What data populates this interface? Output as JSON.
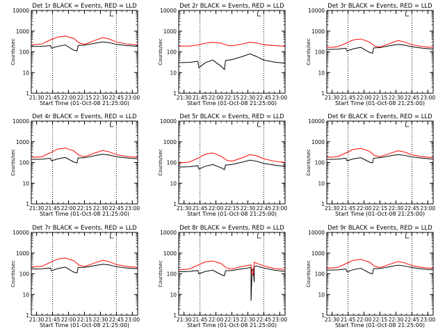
{
  "page": {
    "background": "#ffffff",
    "ink_color": "#000000",
    "lld_color": "#ff0000"
  },
  "chart_data": [
    {
      "type": "line",
      "title": "Det 1r BLACK = Events, RED = LLD",
      "xlabel": "Start Time (01-Oct-08 21:25:00)",
      "ylabel": "Counts/sec",
      "yscale": "log",
      "ylim": [
        1,
        10000
      ],
      "xlim": [
        "21:25",
        "23:05"
      ],
      "yticks": [
        "1",
        "10",
        "100",
        "1000",
        "10000"
      ],
      "xticks": [
        "21:30",
        "21:45",
        "22:00",
        "22:15",
        "22:30",
        "22:45",
        "23:00"
      ],
      "vlines": [
        "21:45",
        "22:45"
      ],
      "series": [
        {
          "name": "Events",
          "color": "#000000",
          "x": [
            "21:25",
            "21:35",
            "21:43",
            "21:44",
            "21:50",
            "21:57",
            "22:05",
            "22:08",
            "22:09",
            "22:15",
            "22:25",
            "22:32",
            "22:38",
            "22:45",
            "22:55",
            "23:05"
          ],
          "y": [
            180,
            185,
            200,
            150,
            185,
            215,
            120,
            110,
            205,
            210,
            260,
            300,
            280,
            230,
            200,
            185
          ]
        },
        {
          "name": "LLD",
          "color": "#ff0000",
          "x": [
            "21:25",
            "21:35",
            "21:43",
            "21:50",
            "21:57",
            "22:05",
            "22:10",
            "22:15",
            "22:25",
            "22:32",
            "22:38",
            "22:45",
            "22:55",
            "23:05"
          ],
          "y": [
            220,
            240,
            380,
            520,
            580,
            440,
            270,
            230,
            360,
            490,
            420,
            300,
            240,
            215
          ]
        }
      ]
    },
    {
      "type": "line",
      "title": "Det 2r BLACK = Events, RED = LLD",
      "xlabel": "Start Time (01-Oct-08 21:25:00)",
      "ylabel": "Counts/sec",
      "yscale": "log",
      "ylim": [
        1,
        10000
      ],
      "xlim": [
        "21:25",
        "23:05"
      ],
      "yticks": [
        "1",
        "10",
        "100",
        "1000",
        "10000"
      ],
      "xticks": [
        "21:30",
        "21:45",
        "22:00",
        "22:15",
        "22:30",
        "22:45",
        "23:00"
      ],
      "vlines": [
        "21:45",
        "22:45"
      ],
      "series": [
        {
          "name": "Events",
          "color": "#000000",
          "x": [
            "21:25",
            "21:35",
            "21:43",
            "21:44",
            "21:50",
            "21:57",
            "22:05",
            "22:08",
            "22:09",
            "22:15",
            "22:25",
            "22:32",
            "22:38",
            "22:45",
            "22:55",
            "23:05"
          ],
          "y": [
            30,
            31,
            35,
            17,
            30,
            40,
            20,
            14,
            38,
            42,
            60,
            80,
            60,
            40,
            32,
            28
          ]
        },
        {
          "name": "LLD",
          "color": "#ff0000",
          "x": [
            "21:25",
            "21:35",
            "21:43",
            "21:50",
            "21:57",
            "22:05",
            "22:10",
            "22:15",
            "22:25",
            "22:32",
            "22:38",
            "22:45",
            "22:55",
            "23:05"
          ],
          "y": [
            190,
            190,
            215,
            260,
            290,
            260,
            210,
            195,
            240,
            290,
            270,
            220,
            200,
            185
          ]
        }
      ]
    },
    {
      "type": "line",
      "title": "Det 3r BLACK = Events, RED = LLD",
      "xlabel": "Start Time (01-Oct-08 21:25:00)",
      "ylabel": "Counts/sec",
      "yscale": "log",
      "ylim": [
        1,
        10000
      ],
      "xlim": [
        "21:25",
        "23:05"
      ],
      "yticks": [
        "1",
        "10",
        "100",
        "1000",
        "10000"
      ],
      "xticks": [
        "21:30",
        "21:45",
        "22:00",
        "22:15",
        "22:30",
        "22:45",
        "23:00"
      ],
      "vlines": [
        "21:45",
        "22:45"
      ],
      "series": [
        {
          "name": "Events",
          "color": "#000000",
          "x": [
            "21:25",
            "21:35",
            "21:43",
            "21:44",
            "21:50",
            "21:57",
            "22:05",
            "22:08",
            "22:09",
            "22:15",
            "22:25",
            "22:32",
            "22:38",
            "22:45",
            "22:55",
            "23:05"
          ],
          "y": [
            130,
            135,
            150,
            110,
            140,
            165,
            95,
            85,
            155,
            160,
            200,
            230,
            210,
            175,
            150,
            135
          ]
        },
        {
          "name": "LLD",
          "color": "#ff0000",
          "x": [
            "21:25",
            "21:35",
            "21:43",
            "21:50",
            "21:57",
            "22:05",
            "22:10",
            "22:15",
            "22:25",
            "22:32",
            "22:38",
            "22:45",
            "22:55",
            "23:05"
          ],
          "y": [
            160,
            175,
            260,
            380,
            420,
            300,
            190,
            170,
            260,
            350,
            300,
            220,
            180,
            160
          ]
        }
      ]
    },
    {
      "type": "line",
      "title": "Det 4r BLACK = Events, RED = LLD",
      "xlabel": "Start Time (01-Oct-08 21:25:00)",
      "ylabel": "Counts/sec",
      "yscale": "log",
      "ylim": [
        1,
        10000
      ],
      "xlim": [
        "21:25",
        "23:05"
      ],
      "yticks": [
        "1",
        "10",
        "100",
        "1000",
        "10000"
      ],
      "xticks": [
        "21:30",
        "21:45",
        "22:00",
        "22:15",
        "22:30",
        "22:45",
        "23:00"
      ],
      "vlines": [
        "21:45",
        "22:45"
      ],
      "series": [
        {
          "name": "Events",
          "color": "#000000",
          "x": [
            "21:25",
            "21:35",
            "21:43",
            "21:44",
            "21:50",
            "21:57",
            "22:05",
            "22:08",
            "22:09",
            "22:15",
            "22:25",
            "22:32",
            "22:38",
            "22:45",
            "22:55",
            "23:05"
          ],
          "y": [
            140,
            145,
            160,
            120,
            150,
            175,
            105,
            95,
            165,
            170,
            215,
            250,
            230,
            190,
            165,
            150
          ]
        },
        {
          "name": "LLD",
          "color": "#ff0000",
          "x": [
            "21:25",
            "21:35",
            "21:43",
            "21:50",
            "21:57",
            "22:05",
            "22:10",
            "22:15",
            "22:25",
            "22:32",
            "22:38",
            "22:45",
            "22:55",
            "23:05"
          ],
          "y": [
            175,
            190,
            300,
            450,
            500,
            360,
            220,
            190,
            290,
            380,
            330,
            240,
            195,
            175
          ]
        }
      ]
    },
    {
      "type": "line",
      "title": "Det 5r BLACK = Events, RED = LLD",
      "xlabel": "Start Time (01-Oct-08 21:25:00)",
      "ylabel": "Counts/sec",
      "yscale": "log",
      "ylim": [
        1,
        10000
      ],
      "xlim": [
        "21:25",
        "23:05"
      ],
      "yticks": [
        "1",
        "10",
        "100",
        "1000",
        "10000"
      ],
      "xticks": [
        "21:30",
        "21:45",
        "22:00",
        "22:15",
        "22:30",
        "22:45",
        "23:00"
      ],
      "vlines": [
        "21:45",
        "22:45"
      ],
      "series": [
        {
          "name": "Events",
          "color": "#000000",
          "x": [
            "21:25",
            "21:35",
            "21:43",
            "21:44",
            "21:50",
            "21:57",
            "22:05",
            "22:08",
            "22:09",
            "22:15",
            "22:25",
            "22:32",
            "22:38",
            "22:45",
            "22:55",
            "23:05"
          ],
          "y": [
            60,
            62,
            70,
            48,
            65,
            80,
            55,
            45,
            75,
            80,
            105,
            130,
            115,
            90,
            75,
            65
          ]
        },
        {
          "name": "LLD",
          "color": "#ff0000",
          "x": [
            "21:25",
            "21:35",
            "21:43",
            "21:50",
            "21:57",
            "22:05",
            "22:10",
            "22:15",
            "22:25",
            "22:32",
            "22:38",
            "22:45",
            "22:55",
            "23:05"
          ],
          "y": [
            95,
            105,
            160,
            250,
            290,
            200,
            130,
            115,
            170,
            240,
            210,
            150,
            115,
            100
          ]
        }
      ]
    },
    {
      "type": "line",
      "title": "Det 6r BLACK = Events, RED = LLD",
      "xlabel": "Start Time (01-Oct-08 21:25:00)",
      "ylabel": "Counts/sec",
      "yscale": "log",
      "ylim": [
        1,
        10000
      ],
      "xlim": [
        "21:25",
        "23:05"
      ],
      "yticks": [
        "1",
        "10",
        "100",
        "1000",
        "10000"
      ],
      "xticks": [
        "21:30",
        "21:45",
        "22:00",
        "22:15",
        "22:30",
        "22:45",
        "23:00"
      ],
      "vlines": [
        "21:45",
        "22:45"
      ],
      "series": [
        {
          "name": "Events",
          "color": "#000000",
          "x": [
            "21:25",
            "21:35",
            "21:43",
            "21:44",
            "21:50",
            "21:57",
            "22:05",
            "22:08",
            "22:09",
            "22:15",
            "22:25",
            "22:32",
            "22:38",
            "22:45",
            "22:55",
            "23:05"
          ],
          "y": [
            140,
            145,
            160,
            120,
            150,
            170,
            105,
            95,
            160,
            170,
            210,
            240,
            220,
            185,
            160,
            145
          ]
        },
        {
          "name": "LLD",
          "color": "#ff0000",
          "x": [
            "21:25",
            "21:35",
            "21:43",
            "21:50",
            "21:57",
            "22:05",
            "22:10",
            "22:15",
            "22:25",
            "22:32",
            "22:38",
            "22:45",
            "22:55",
            "23:05"
          ],
          "y": [
            175,
            190,
            290,
            430,
            480,
            350,
            215,
            190,
            280,
            370,
            320,
            235,
            190,
            170
          ]
        }
      ]
    },
    {
      "type": "line",
      "title": "Det 7r BLACK = Events, RED = LLD",
      "xlabel": "Start Time (01-Oct-08 21:25:00)",
      "ylabel": "Counts/sec",
      "yscale": "log",
      "ylim": [
        1,
        10000
      ],
      "xlim": [
        "21:25",
        "23:05"
      ],
      "yticks": [
        "1",
        "10",
        "100",
        "1000",
        "10000"
      ],
      "xticks": [
        "21:30",
        "21:45",
        "22:00",
        "22:15",
        "22:30",
        "22:45",
        "23:00"
      ],
      "vlines": [
        "21:45",
        "22:45"
      ],
      "series": [
        {
          "name": "Events",
          "color": "#000000",
          "x": [
            "21:25",
            "21:35",
            "21:43",
            "21:44",
            "21:50",
            "21:57",
            "22:05",
            "22:08",
            "22:09",
            "22:15",
            "22:25",
            "22:32",
            "22:38",
            "22:45",
            "22:55",
            "23:05"
          ],
          "y": [
            170,
            175,
            190,
            140,
            180,
            210,
            120,
            110,
            200,
            205,
            250,
            290,
            270,
            220,
            190,
            175
          ]
        },
        {
          "name": "LLD",
          "color": "#ff0000",
          "x": [
            "21:25",
            "21:35",
            "21:43",
            "21:50",
            "21:57",
            "22:05",
            "22:10",
            "22:15",
            "22:25",
            "22:32",
            "22:38",
            "22:45",
            "22:55",
            "23:05"
          ],
          "y": [
            215,
            230,
            360,
            520,
            580,
            430,
            260,
            225,
            340,
            450,
            390,
            280,
            225,
            205
          ]
        }
      ]
    },
    {
      "type": "line",
      "title": "Det 8r BLACK = Events, RED = LLD",
      "xlabel": "Start Time (01-Oct-08 21:25:00)",
      "ylabel": "Counts/sec",
      "yscale": "log",
      "ylim": [
        1,
        10000
      ],
      "xlim": [
        "21:25",
        "23:05"
      ],
      "yticks": [
        "1",
        "10",
        "100",
        "1000",
        "10000"
      ],
      "xticks": [
        "21:30",
        "21:45",
        "22:00",
        "22:15",
        "22:30",
        "22:45",
        "23:00"
      ],
      "vlines": [
        "21:45",
        "22:45"
      ],
      "series": [
        {
          "name": "Events",
          "color": "#000000",
          "x": [
            "21:25",
            "21:35",
            "21:43",
            "21:44",
            "21:50",
            "21:57",
            "22:05",
            "22:08",
            "22:09",
            "22:15",
            "22:25",
            "22:33",
            "22:33",
            "22:34",
            "22:35",
            "22:36",
            "22:36",
            "22:38",
            "22:45",
            "22:55",
            "23:05"
          ],
          "y": [
            125,
            130,
            145,
            100,
            130,
            150,
            90,
            80,
            140,
            145,
            175,
            200,
            5,
            150,
            170,
            40,
            220,
            240,
            190,
            150,
            130
          ]
        },
        {
          "name": "LLD",
          "color": "#ff0000",
          "x": [
            "21:25",
            "21:35",
            "21:43",
            "21:50",
            "21:57",
            "22:05",
            "22:10",
            "22:15",
            "22:25",
            "22:33",
            "22:34",
            "22:35",
            "22:36",
            "22:38",
            "22:45",
            "22:55",
            "23:05"
          ],
          "y": [
            155,
            170,
            260,
            380,
            420,
            310,
            190,
            170,
            230,
            270,
            100,
            90,
            360,
            330,
            240,
            180,
            160
          ]
        }
      ]
    },
    {
      "type": "line",
      "title": "Det 9r BLACK = Events, RED = LLD",
      "xlabel": "Start Time (01-Oct-08 21:25:00)",
      "ylabel": "Counts/sec",
      "yscale": "log",
      "ylim": [
        1,
        10000
      ],
      "xlim": [
        "21:25",
        "23:05"
      ],
      "yticks": [
        "1",
        "10",
        "100",
        "1000",
        "10000"
      ],
      "xticks": [
        "21:30",
        "21:45",
        "22:00",
        "22:15",
        "22:30",
        "22:45",
        "23:00"
      ],
      "vlines": [
        "21:45",
        "22:45"
      ],
      "series": [
        {
          "name": "Events",
          "color": "#000000",
          "x": [
            "21:25",
            "21:35",
            "21:43",
            "21:44",
            "21:50",
            "21:57",
            "22:05",
            "22:08",
            "22:09",
            "22:15",
            "22:25",
            "22:32",
            "22:38",
            "22:45",
            "22:55",
            "23:05"
          ],
          "y": [
            150,
            155,
            170,
            125,
            160,
            185,
            110,
            100,
            175,
            180,
            225,
            260,
            240,
            200,
            170,
            155
          ]
        },
        {
          "name": "LLD",
          "color": "#ff0000",
          "x": [
            "21:25",
            "21:35",
            "21:43",
            "21:50",
            "21:57",
            "22:05",
            "22:10",
            "22:15",
            "22:25",
            "22:32",
            "22:38",
            "22:45",
            "22:55",
            "23:05"
          ],
          "y": [
            185,
            200,
            310,
            450,
            500,
            370,
            230,
            200,
            300,
            390,
            340,
            250,
            200,
            180
          ]
        }
      ]
    }
  ]
}
